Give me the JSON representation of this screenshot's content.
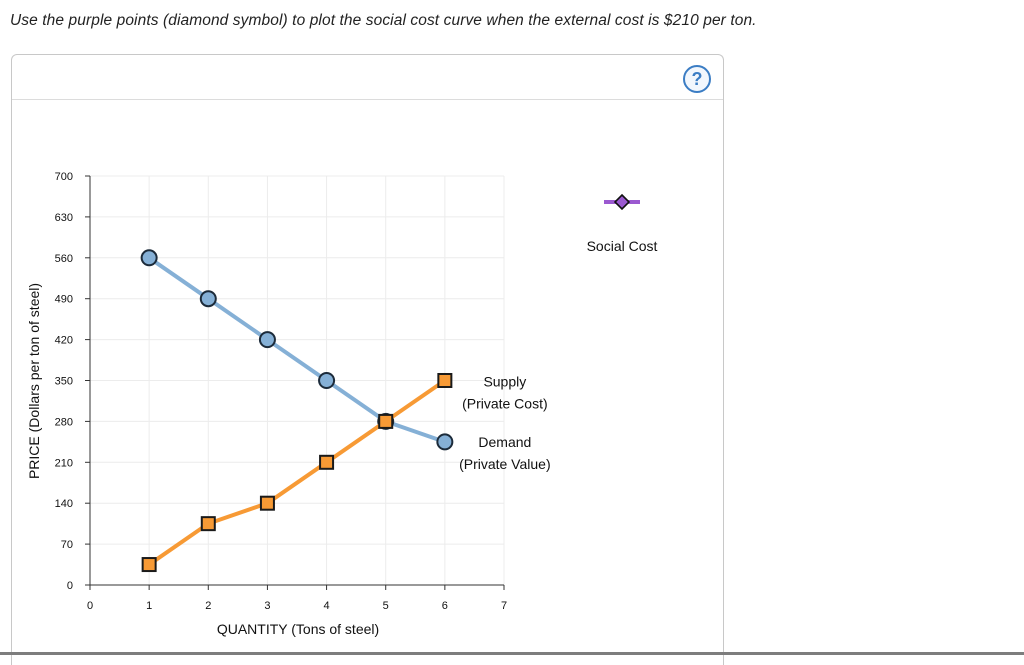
{
  "instruction": "Use the purple points (diamond symbol) to plot the social cost curve when the external cost is $210 per ton.",
  "help_label": "?",
  "legend": {
    "social_cost_label": "Social Cost"
  },
  "colors": {
    "demand": "#85b0d6",
    "supply": "#f79a35",
    "social_cost": "#9b59d0",
    "help": "#3b7dc4"
  },
  "chart_data": {
    "type": "line",
    "xlabel": "QUANTITY (Tons of steel)",
    "ylabel": "PRICE (Dollars per ton of steel)",
    "xlim": [
      0,
      7
    ],
    "ylim": [
      0,
      700
    ],
    "x_ticks": [
      0,
      1,
      2,
      3,
      4,
      5,
      6,
      7
    ],
    "y_ticks": [
      0,
      70,
      140,
      210,
      280,
      350,
      420,
      490,
      560,
      630,
      700
    ],
    "grid": true,
    "series": [
      {
        "key": "demand",
        "label_line1": "Demand",
        "label_line2": "(Private Value)",
        "marker": "circle",
        "x": [
          1,
          2,
          3,
          4,
          5,
          6
        ],
        "y": [
          560,
          490,
          420,
          350,
          280,
          245
        ]
      },
      {
        "key": "supply",
        "label_line1": "Supply",
        "label_line2": "(Private Cost)",
        "marker": "square",
        "x": [
          1,
          2,
          3,
          4,
          5,
          6
        ],
        "y": [
          35,
          105,
          140,
          210,
          280,
          350
        ]
      }
    ]
  }
}
